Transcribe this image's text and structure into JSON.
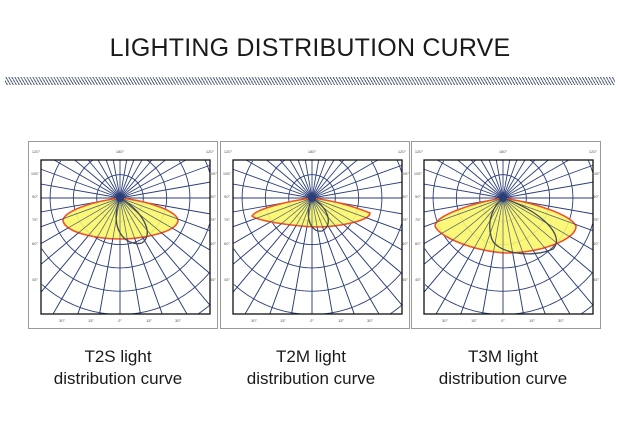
{
  "title": "LIGHTING DISTRIBUTION CURVE",
  "diagram_labels": {
    "top": [
      "120°",
      "180°",
      "120°"
    ],
    "side": [
      "105°",
      "90°",
      "75°",
      "60°",
      "45°"
    ],
    "bottom": [
      "30°",
      "15°",
      "0°",
      "15°",
      "30°"
    ]
  },
  "colors": {
    "fill": "#fbf66a",
    "outline": "#f0522a",
    "grid": "#2c3e78",
    "secondary_curve": "#444a55"
  },
  "panels": [
    {
      "id": "t2s",
      "caption_line1": "T2S light",
      "caption_line2": "distribution curve"
    },
    {
      "id": "t2m",
      "caption_line1": "T2M light",
      "caption_line2": "distribution curve"
    },
    {
      "id": "t3m",
      "caption_line1": "T3M light",
      "caption_line2": "distribution curve"
    }
  ]
}
